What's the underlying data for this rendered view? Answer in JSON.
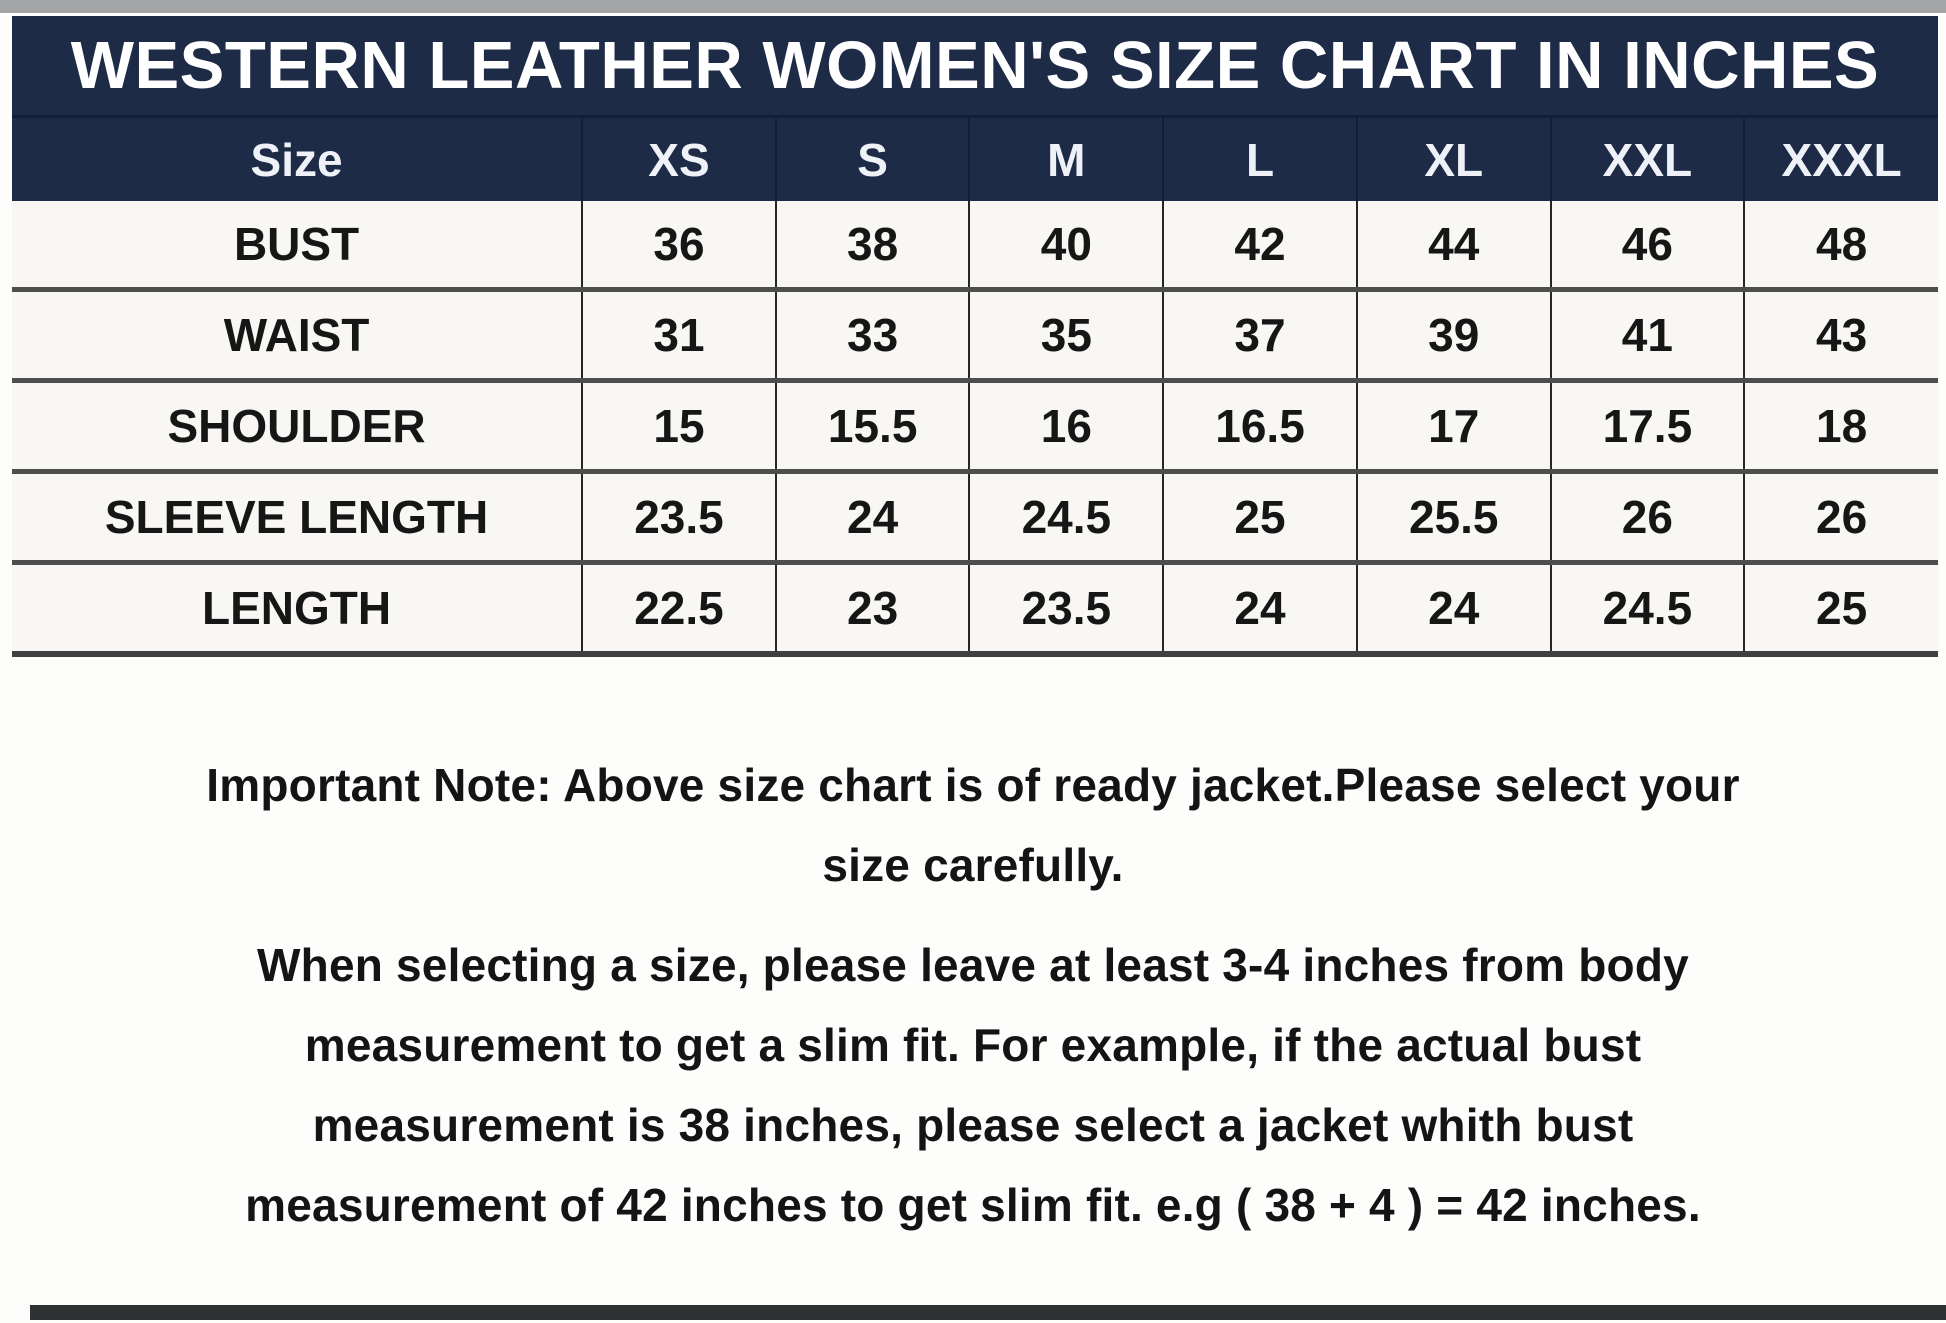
{
  "chart_data": {
    "type": "table",
    "title": "WESTERN LEATHER WOMEN'S SIZE CHART IN INCHES",
    "units": "inches",
    "columns": [
      "Size",
      "XS",
      "S",
      "M",
      "L",
      "XL",
      "XXL",
      "XXXL"
    ],
    "rows": [
      [
        "BUST",
        "36",
        "38",
        "40",
        "42",
        "44",
        "46",
        "48"
      ],
      [
        "WAIST",
        "31",
        "33",
        "35",
        "37",
        "39",
        "41",
        "43"
      ],
      [
        "SHOULDER",
        "15",
        "15.5",
        "16",
        "16.5",
        "17",
        "17.5",
        "18"
      ],
      [
        "SLEEVE LENGTH",
        "23.5",
        "24",
        "24.5",
        "25",
        "25.5",
        "26",
        "26"
      ],
      [
        "LENGTH",
        "22.5",
        "23",
        "23.5",
        "24",
        "24",
        "24.5",
        "25"
      ]
    ]
  },
  "notes": {
    "paragraph1_lines": [
      "Important Note: Above size chart is of ready jacket.Please select your",
      "size carefully."
    ],
    "paragraph2_lines": [
      "When selecting a size, please leave at least 3-4 inches from body",
      "measurement to get a slim fit. For example, if the actual bust",
      "measurement is 38 inches, please select a jacket whith bust",
      "measurement of 42 inches to get slim fit. e.g ( 38 + 4 ) = 42 inches."
    ]
  },
  "colors": {
    "header_navy": "#1d2b47",
    "top_strip_gray": "#a4a5a7",
    "bottom_strip_dark": "#2f3032",
    "table_background": "#f8f7f4",
    "row_divider": "#4e4e4e",
    "column_divider": "#262626",
    "title_text": "#ffffff",
    "body_text": "#161616"
  }
}
